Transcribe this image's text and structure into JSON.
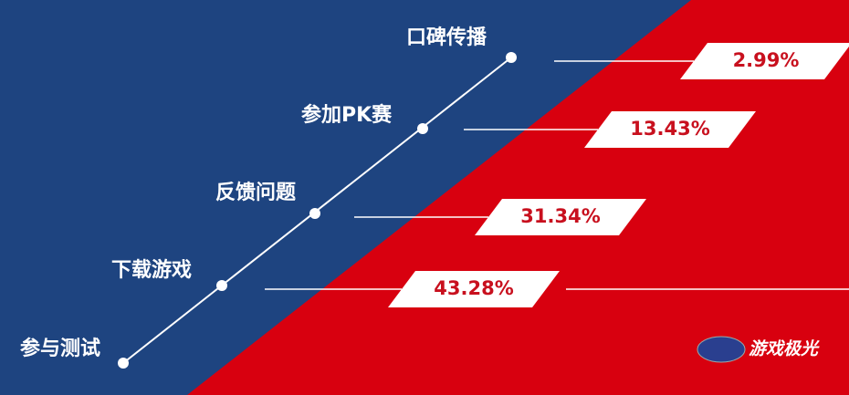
{
  "nodes": [
    {
      "label": "参与测试"
    },
    {
      "label": "下载游戏",
      "value_label": "43.28%"
    },
    {
      "label": "反馈问题",
      "value_label": "31.34%"
    },
    {
      "label": "参加PK赛",
      "value_label": "13.43%"
    },
    {
      "label": "口碑传播",
      "value_label": "2.99%"
    }
  ],
  "logo": {
    "text": "游戏极光"
  }
}
